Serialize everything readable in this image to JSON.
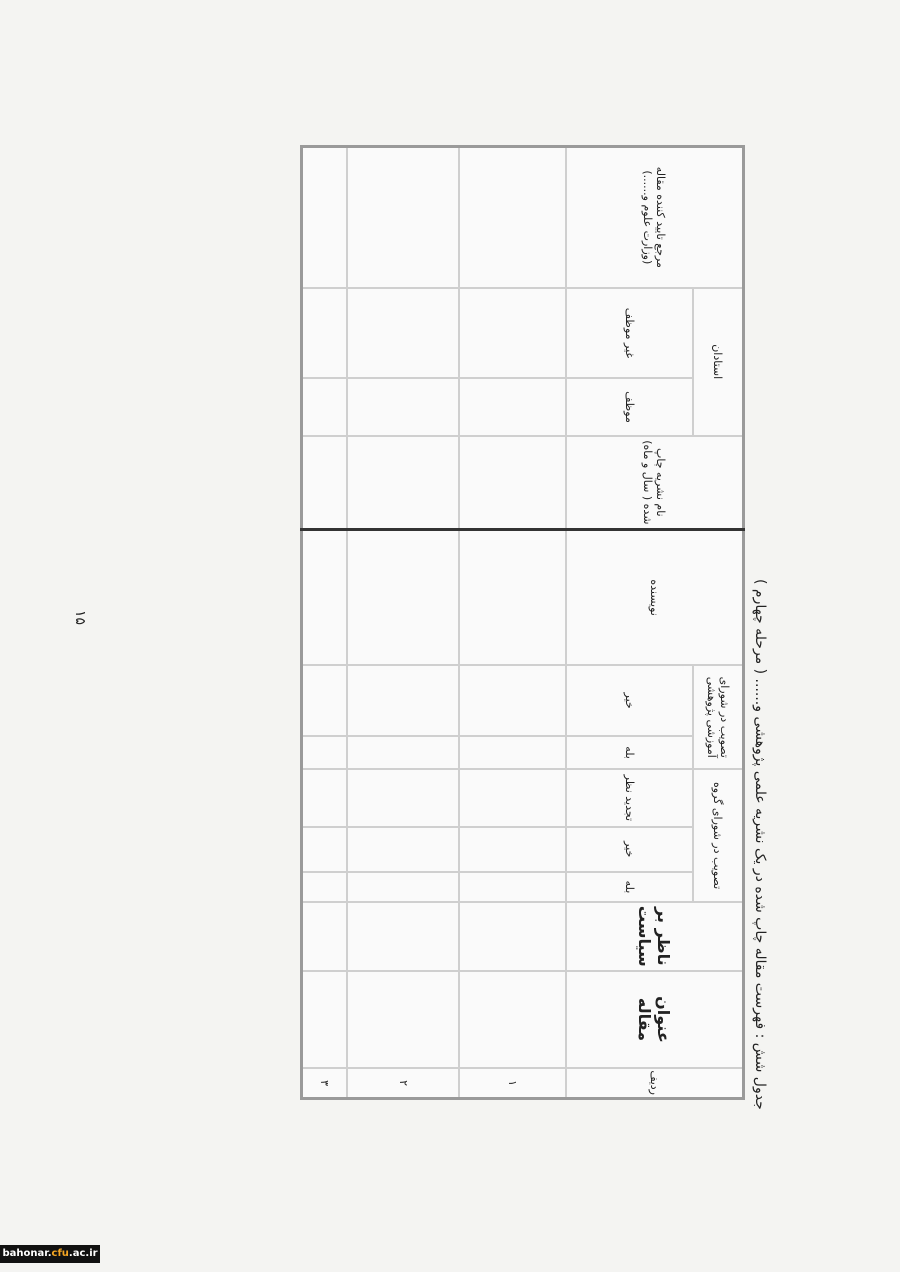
{
  "title": "جدول شش : فهرست مقاله چاپ شده در یک نشریه علمی پژوهشی و...... ( مرحله چهارم )",
  "page_number": "۱۵",
  "table": {
    "headers": {
      "row_no": "ردیف",
      "article_title": "عنوان مقاله",
      "supervisor": "ناظر بر سیاست",
      "group_council": "تصویب در شورای گروه",
      "group_yes": "بله",
      "group_no": "خیر",
      "group_revise": "تجدید نظر",
      "edu_council": "تصویب در شورای آموزشی پژوهشی",
      "edu_yes": "بله",
      "edu_no": "خیر",
      "author": "نویسنده",
      "journal": "نام نشریه چاپ شده ( سال و ماه)",
      "professors": "استادان",
      "obligated": "موظف",
      "non_obligated": "غیر موظف",
      "approver": "مرجع تایید کننده مقاله (وزارت علوم و......)"
    },
    "rows": [
      "۱",
      "۲",
      "۳"
    ]
  },
  "watermark": {
    "prefix": "bahonar.",
    "accent": "cfu",
    "suffix": ".ac.ir"
  }
}
